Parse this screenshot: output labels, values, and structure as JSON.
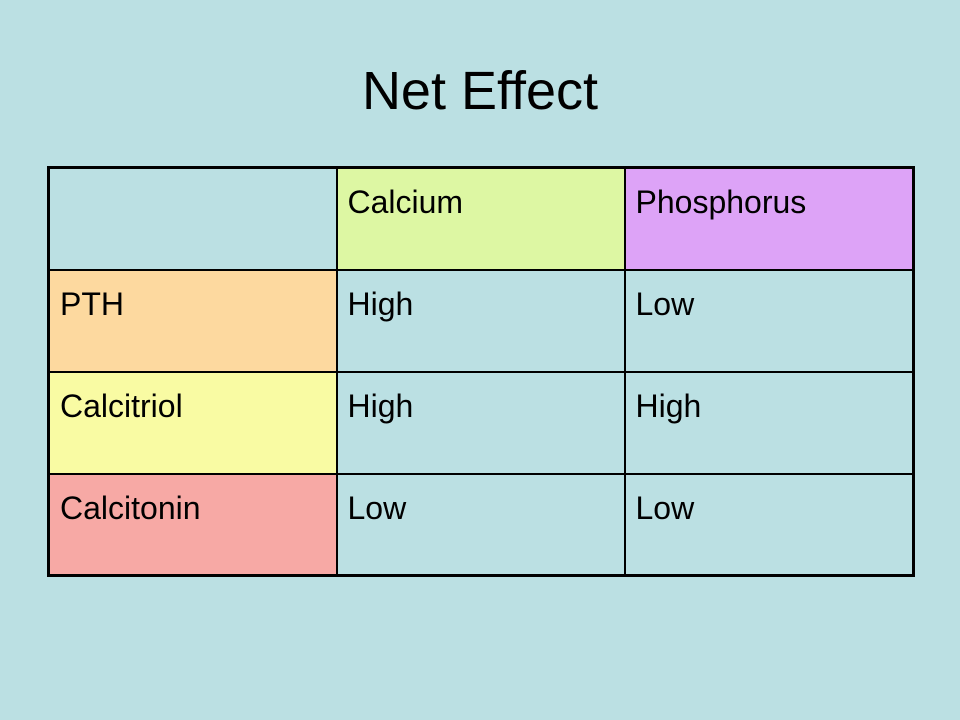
{
  "title": "Net Effect",
  "table": {
    "header": {
      "corner": "",
      "columns": [
        "Calcium",
        "Phosphorus"
      ]
    },
    "rows": [
      {
        "label": "PTH",
        "values": [
          "High",
          "Low"
        ]
      },
      {
        "label": "Calcitriol",
        "values": [
          "High",
          "High"
        ]
      },
      {
        "label": "Calcitonin",
        "values": [
          "Low",
          "Low"
        ]
      }
    ]
  },
  "colors": {
    "background": "#bbe0e3",
    "corner_cell": "#bbe0e3",
    "calcium_header": "#ddf7a3",
    "phosphorus_header": "#dda3f7",
    "pth_row_header": "#fdd99f",
    "calcitriol_row_header": "#f9fba3",
    "calcitonin_row_header": "#f7a9a5",
    "body_cells": "#bbe0e3",
    "border": "#000000"
  }
}
